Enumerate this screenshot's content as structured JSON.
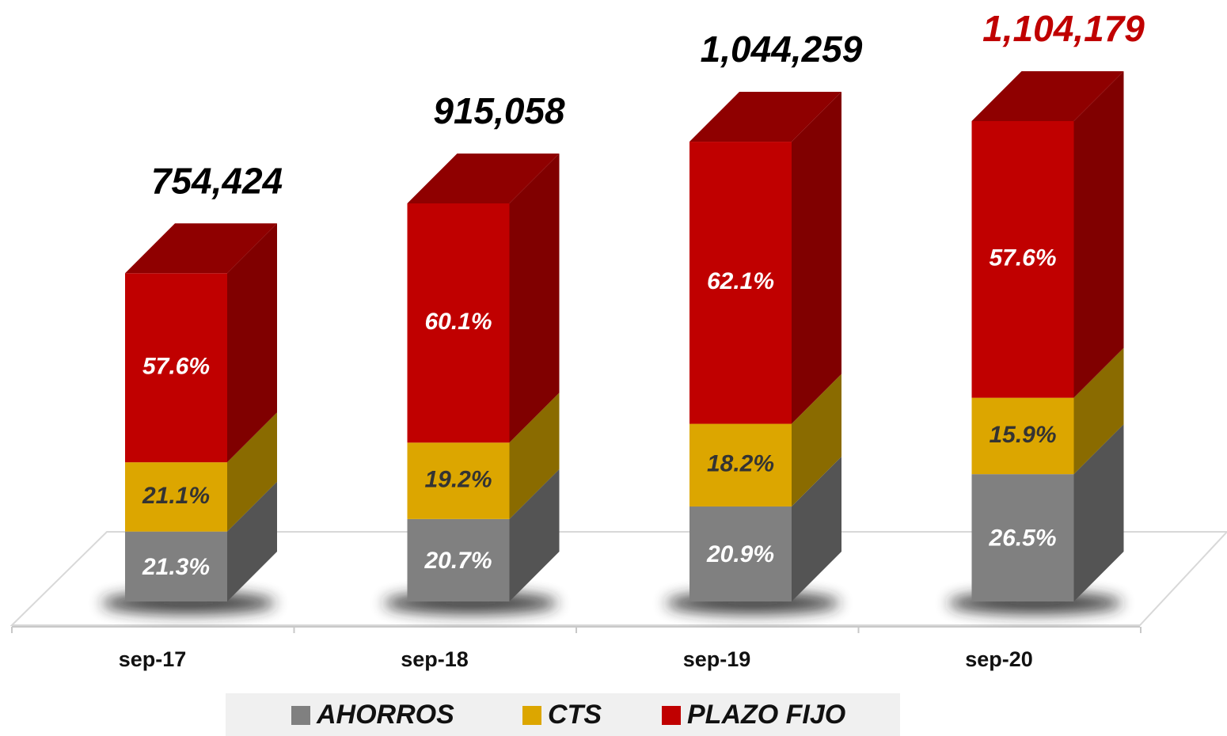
{
  "chart_data": {
    "type": "bar",
    "categories": [
      "sep-17",
      "sep-18",
      "sep-19",
      "sep-20"
    ],
    "series": [
      {
        "name": "AHORROS",
        "color": "#808080",
        "side_color": "#545454",
        "label_color": "#ffffff",
        "values": [
          21.3,
          20.7,
          20.9,
          26.5
        ],
        "value_labels": [
          "21.3%",
          "20.7%",
          "20.9%",
          "26.5%"
        ]
      },
      {
        "name": "CTS",
        "color": "#dca600",
        "side_color": "#8a6b00",
        "label_color": "#333333",
        "values": [
          21.1,
          19.2,
          18.2,
          15.9
        ],
        "value_labels": [
          "21.1%",
          "19.2%",
          "18.2%",
          "15.9%"
        ]
      },
      {
        "name": "PLAZO FIJO",
        "color": "#c00000",
        "side_color": "#800000",
        "top_color": "#8f0000",
        "label_color": "#ffffff",
        "values": [
          57.6,
          60.1,
          62.1,
          57.6
        ],
        "value_labels": [
          "57.6%",
          "60.1%",
          "62.1%",
          "57.6%"
        ]
      }
    ],
    "totals": [
      754424,
      915058,
      1044259,
      1104179
    ],
    "total_labels": [
      "754,424",
      "915,058",
      "1,044,259",
      "1,104,179"
    ],
    "total_colors": [
      "#000000",
      "#000000",
      "#000000",
      "#c00000"
    ],
    "legend": "bottom"
  }
}
